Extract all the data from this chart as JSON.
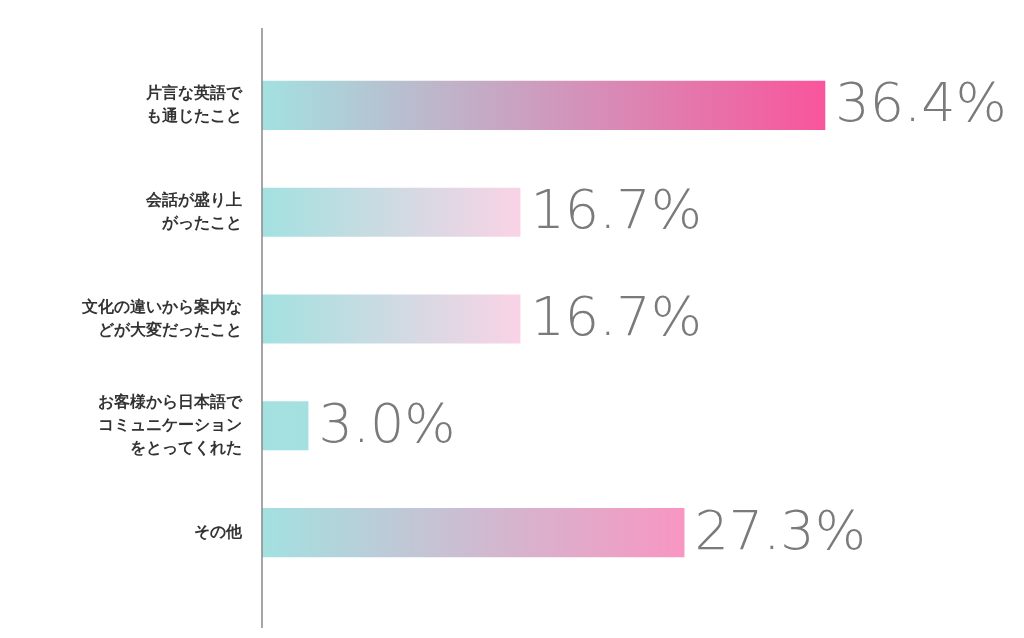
{
  "chart_data": {
    "type": "bar",
    "orientation": "horizontal",
    "tick_labels": "y",
    "categories": [
      "片言な英語でも通じたこと",
      "会話が盛り上がったこと",
      "文化の違いから案内などが大変だったこと",
      "お客様から日本語でコミュニケーションをとってくれた",
      "その他"
    ],
    "values": [
      36.4,
      16.7,
      16.7,
      3.0,
      27.3
    ],
    "colors": [
      "#f9559c",
      "#f9d3e5",
      "#f9d3e5",
      "#a5e0e0",
      "#f896c2"
    ],
    "value_labels": [
      "36.4%",
      "16.7%",
      "16.7%",
      "3.0%",
      "27.3%"
    ]
  }
}
